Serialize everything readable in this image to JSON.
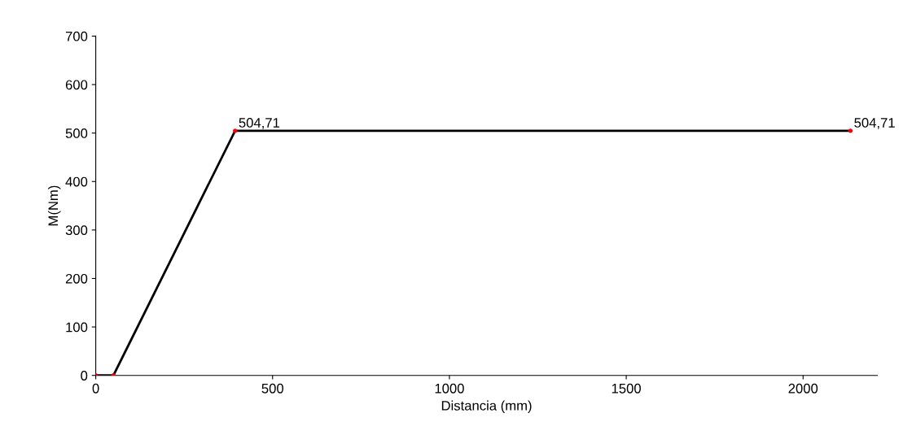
{
  "chart_data": {
    "type": "line",
    "xlabel": "Distancia (mm)",
    "ylabel": "M(Nm)",
    "x": [
      0,
      50,
      394,
      2134
    ],
    "series": [
      {
        "color": "#000000",
        "colors": [
          "#ff0000",
          "#ff0000",
          "#ff0000",
          "#ff0000"
        ],
        "values": [
          0,
          0,
          504.71,
          504.71
        ],
        "value_labels": [
          null,
          null,
          "504,71",
          "504,71"
        ]
      }
    ],
    "xlim": [
      0,
      2210
    ],
    "xticks": [
      0,
      500,
      1000,
      1500,
      2000
    ],
    "ylim": [
      0,
      700
    ],
    "yticks": [
      0,
      100,
      200,
      300,
      400,
      500,
      600,
      700
    ],
    "grid": false,
    "marker": "circle",
    "line_style": "solid"
  }
}
